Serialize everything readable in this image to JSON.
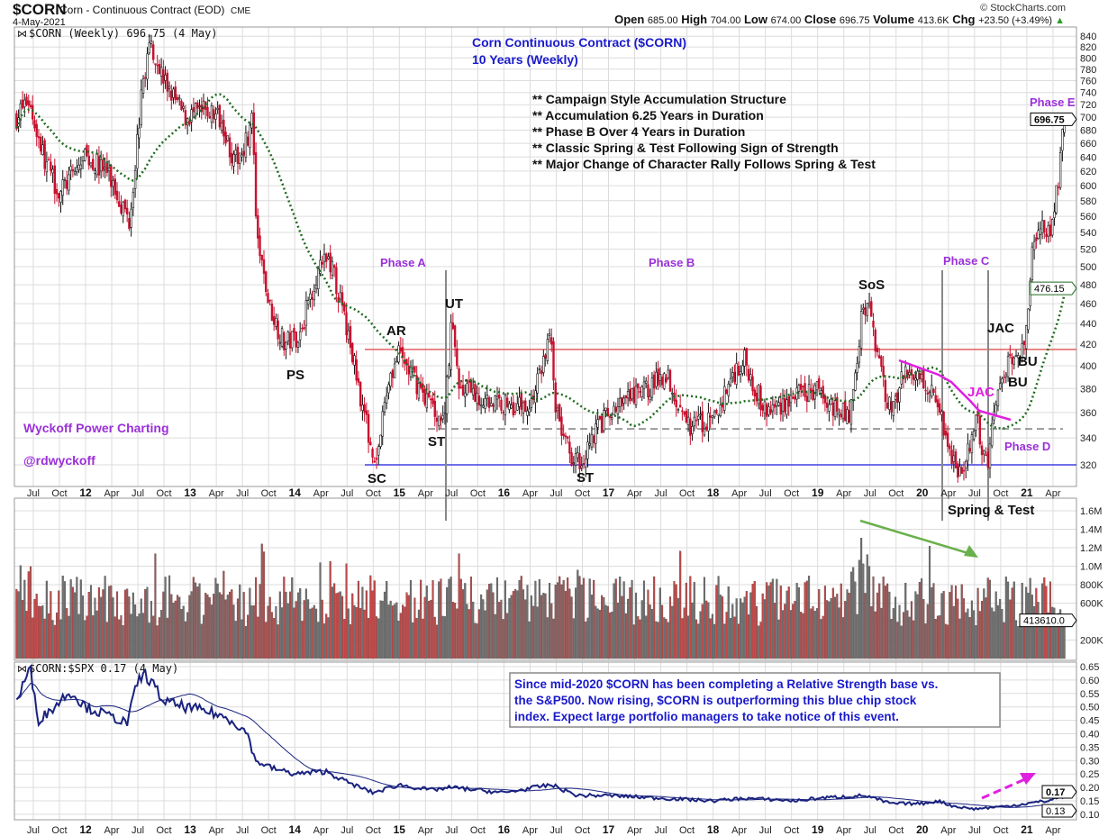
{
  "header": {
    "symbol": "$CORN",
    "name": "Corn - Continuous Contract (EOD)",
    "exchange": "CME",
    "date": "4-May-2021",
    "copyright": "© StockCharts.com",
    "ohlc": [
      {
        "label": "Open",
        "value": "685.00"
      },
      {
        "label": "High",
        "value": "704.00"
      },
      {
        "label": "Low",
        "value": "674.00"
      },
      {
        "label": "Close",
        "value": "696.75"
      },
      {
        "label": "Volume",
        "value": "413.6K"
      },
      {
        "label": "Chg",
        "value": "+23.50 (+3.49%)"
      }
    ]
  },
  "legends": {
    "price": "$CORN (Weekly) 696.75 (4 May)",
    "rs": "$CORN:$SPX 0.17 (4 May)"
  },
  "annotations": {
    "title1": "Corn Continuous Contract ($CORN)",
    "title2": "10 Years (Weekly)",
    "bullets": [
      "** Campaign Style Accumulation Structure",
      "** Accumulation 6.25 Years in Duration",
      "** Phase B Over 4 Years in Duration",
      "** Classic Spring & Test Following Sign of Strength",
      "** Major Change of Character Rally Follows Spring & Test"
    ],
    "phase_a": "Phase A",
    "phase_b": "Phase B",
    "phase_c": "Phase C",
    "phase_d": "Phase D",
    "phase_e": "Phase E",
    "ps": "PS",
    "sc": "SC",
    "ar": "AR",
    "st1": "ST",
    "ut": "UT",
    "st2": "ST",
    "sos": "SoS",
    "jac1": "JAC",
    "jac2": "JAC",
    "bu1": "BU",
    "bu2": "BU",
    "spring_test": "Spring & Test",
    "brand": "Wyckoff Power Charting",
    "handle": "@rdwyckoff",
    "rs_note": [
      "Since mid-2020 $CORN has been completing a Relative Strength base vs.",
      "the S&P500. Now rising, $CORN is outperforming this blue chip stock",
      "index. Expect large portfolio managers to take notice of this event."
    ]
  },
  "colors": {
    "up": "#111111",
    "down": "#c8102e",
    "ma": "#1e6b1e",
    "resistance": "#e06060",
    "support": "#4040e0",
    "creek": "#999999",
    "phase": "#9b30d9",
    "title": "#1a1acd",
    "rs": "#1a237e",
    "vol_up": "#707070",
    "vol_down": "#c04848"
  },
  "chart_data": [
    {
      "type": "candlestick",
      "title": "$CORN (Weekly)",
      "ylim": [
        310,
        850
      ],
      "yscale": "log",
      "y_ticks": [
        320,
        340,
        360,
        380,
        400,
        420,
        440,
        460,
        480,
        500,
        520,
        540,
        560,
        580,
        600,
        620,
        640,
        660,
        680,
        700,
        720,
        740,
        760,
        780,
        800,
        820,
        840
      ],
      "last_value": "696.75",
      "ma_value": "476.15",
      "ma_period_weeks": 40,
      "levels": {
        "resistance": 415,
        "creek": 347,
        "support": 320
      },
      "price_path": [
        [
          2011.34,
          700
        ],
        [
          2011.45,
          730
        ],
        [
          2011.6,
          640
        ],
        [
          2011.75,
          590
        ],
        [
          2011.9,
          620
        ],
        [
          2012.0,
          640
        ],
        [
          2012.2,
          620
        ],
        [
          2012.42,
          555
        ],
        [
          2012.55,
          760
        ],
        [
          2012.62,
          830
        ],
        [
          2012.75,
          760
        ],
        [
          2012.95,
          700
        ],
        [
          2013.15,
          710
        ],
        [
          2013.3,
          700
        ],
        [
          2013.42,
          630
        ],
        [
          2013.55,
          670
        ],
        [
          2013.6,
          700
        ],
        [
          2013.63,
          540
        ],
        [
          2013.75,
          460
        ],
        [
          2013.9,
          420
        ],
        [
          2014.05,
          430
        ],
        [
          2014.2,
          490
        ],
        [
          2014.33,
          510
        ],
        [
          2014.42,
          470
        ],
        [
          2014.55,
          410
        ],
        [
          2014.7,
          345
        ],
        [
          2014.78,
          322
        ],
        [
          2014.9,
          390
        ],
        [
          2015.0,
          410
        ],
        [
          2015.2,
          380
        ],
        [
          2015.42,
          352
        ],
        [
          2015.5,
          440
        ],
        [
          2015.58,
          380
        ],
        [
          2015.8,
          370
        ],
        [
          2016.0,
          368
        ],
        [
          2016.25,
          365
        ],
        [
          2016.45,
          430
        ],
        [
          2016.5,
          360
        ],
        [
          2016.62,
          330
        ],
        [
          2016.72,
          322
        ],
        [
          2016.9,
          350
        ],
        [
          2017.1,
          365
        ],
        [
          2017.45,
          385
        ],
        [
          2017.55,
          395
        ],
        [
          2017.75,
          350
        ],
        [
          2018.0,
          352
        ],
        [
          2018.2,
          395
        ],
        [
          2018.3,
          405
        ],
        [
          2018.5,
          360
        ],
        [
          2018.75,
          372
        ],
        [
          2019.0,
          378
        ],
        [
          2019.3,
          355
        ],
        [
          2019.42,
          445
        ],
        [
          2019.48,
          462
        ],
        [
          2019.56,
          410
        ],
        [
          2019.7,
          360
        ],
        [
          2019.85,
          398
        ],
        [
          2020.0,
          388
        ],
        [
          2020.12,
          378
        ],
        [
          2020.25,
          335
        ],
        [
          2020.35,
          315
        ],
        [
          2020.45,
          330
        ],
        [
          2020.52,
          355
        ],
        [
          2020.58,
          330
        ],
        [
          2020.62,
          322
        ],
        [
          2020.7,
          365
        ],
        [
          2020.8,
          395
        ],
        [
          2020.9,
          420
        ],
        [
          2020.97,
          415
        ],
        [
          2021.05,
          510
        ],
        [
          2021.12,
          545
        ],
        [
          2021.25,
          550
        ],
        [
          2021.3,
          610
        ],
        [
          2021.36,
          697
        ]
      ],
      "volume": {
        "y_ticks": [
          "200K",
          "400K",
          "600K",
          "800K",
          "1.0M",
          "1.2M",
          "1.4M",
          "1.6M"
        ],
        "y_tick_values": [
          200000,
          400000,
          600000,
          800000,
          1000000,
          1200000,
          1400000,
          1600000
        ],
        "last_value": "413610.0",
        "last_numeric": 413610,
        "ylim": [
          0,
          1700000
        ]
      },
      "x_ticks": [
        [
          2011.5,
          "Jul"
        ],
        [
          2011.75,
          "Oct"
        ],
        [
          2012.0,
          "12"
        ],
        [
          2012.25,
          "Apr"
        ],
        [
          2012.5,
          "Jul"
        ],
        [
          2012.75,
          "Oct"
        ],
        [
          2013.0,
          "13"
        ],
        [
          2013.25,
          "Apr"
        ],
        [
          2013.5,
          "Jul"
        ],
        [
          2013.75,
          "Oct"
        ],
        [
          2014.0,
          "14"
        ],
        [
          2014.25,
          "Apr"
        ],
        [
          2014.5,
          "Jul"
        ],
        [
          2014.75,
          "Oct"
        ],
        [
          2015.0,
          "15"
        ],
        [
          2015.25,
          "Apr"
        ],
        [
          2015.5,
          "Jul"
        ],
        [
          2015.75,
          "Oct"
        ],
        [
          2016.0,
          "16"
        ],
        [
          2016.25,
          "Apr"
        ],
        [
          2016.5,
          "Jul"
        ],
        [
          2016.75,
          "Oct"
        ],
        [
          2017.0,
          "17"
        ],
        [
          2017.25,
          "Apr"
        ],
        [
          2017.5,
          "Jul"
        ],
        [
          2017.75,
          "Oct"
        ],
        [
          2018.0,
          "18"
        ],
        [
          2018.25,
          "Apr"
        ],
        [
          2018.5,
          "Jul"
        ],
        [
          2018.75,
          "Oct"
        ],
        [
          2019.0,
          "19"
        ],
        [
          2019.25,
          "Apr"
        ],
        [
          2019.5,
          "Jul"
        ],
        [
          2019.75,
          "Oct"
        ],
        [
          2020.0,
          "20"
        ],
        [
          2020.25,
          "Apr"
        ],
        [
          2020.5,
          "Jul"
        ],
        [
          2020.75,
          "Oct"
        ],
        [
          2021.0,
          "21"
        ],
        [
          2021.25,
          "Apr"
        ]
      ]
    },
    {
      "type": "line",
      "title": "$CORN:$SPX",
      "ylim": [
        0.08,
        0.66
      ],
      "y_ticks": [
        "0.10",
        "0.15",
        "0.20",
        "0.25",
        "0.30",
        "0.35",
        "0.40",
        "0.45",
        "0.50",
        "0.55",
        "0.60",
        "0.65"
      ],
      "last_value": "0.17",
      "ma_value": "0.13",
      "series": [
        [
          2011.34,
          0.52
        ],
        [
          2011.42,
          0.6
        ],
        [
          2011.47,
          0.64
        ],
        [
          2011.55,
          0.45
        ],
        [
          2011.7,
          0.5
        ],
        [
          2011.85,
          0.56
        ],
        [
          2012.0,
          0.5
        ],
        [
          2012.2,
          0.47
        ],
        [
          2012.4,
          0.44
        ],
        [
          2012.5,
          0.6
        ],
        [
          2012.58,
          0.62
        ],
        [
          2012.75,
          0.52
        ],
        [
          2012.95,
          0.5
        ],
        [
          2013.2,
          0.48
        ],
        [
          2013.4,
          0.45
        ],
        [
          2013.55,
          0.4
        ],
        [
          2013.62,
          0.3
        ],
        [
          2013.8,
          0.27
        ],
        [
          2014.0,
          0.25
        ],
        [
          2014.3,
          0.26
        ],
        [
          2014.5,
          0.22
        ],
        [
          2014.75,
          0.18
        ],
        [
          2015.0,
          0.21
        ],
        [
          2015.3,
          0.19
        ],
        [
          2015.5,
          0.2
        ],
        [
          2016.0,
          0.18
        ],
        [
          2016.45,
          0.21
        ],
        [
          2016.7,
          0.17
        ],
        [
          2017.0,
          0.17
        ],
        [
          2017.5,
          0.16
        ],
        [
          2018.0,
          0.15
        ],
        [
          2018.3,
          0.16
        ],
        [
          2018.8,
          0.15
        ],
        [
          2019.0,
          0.16
        ],
        [
          2019.45,
          0.17
        ],
        [
          2019.7,
          0.14
        ],
        [
          2020.0,
          0.14
        ],
        [
          2020.15,
          0.15
        ],
        [
          2020.3,
          0.13
        ],
        [
          2020.5,
          0.12
        ],
        [
          2020.8,
          0.13
        ],
        [
          2021.0,
          0.14
        ],
        [
          2021.2,
          0.15
        ],
        [
          2021.36,
          0.17
        ]
      ]
    }
  ]
}
